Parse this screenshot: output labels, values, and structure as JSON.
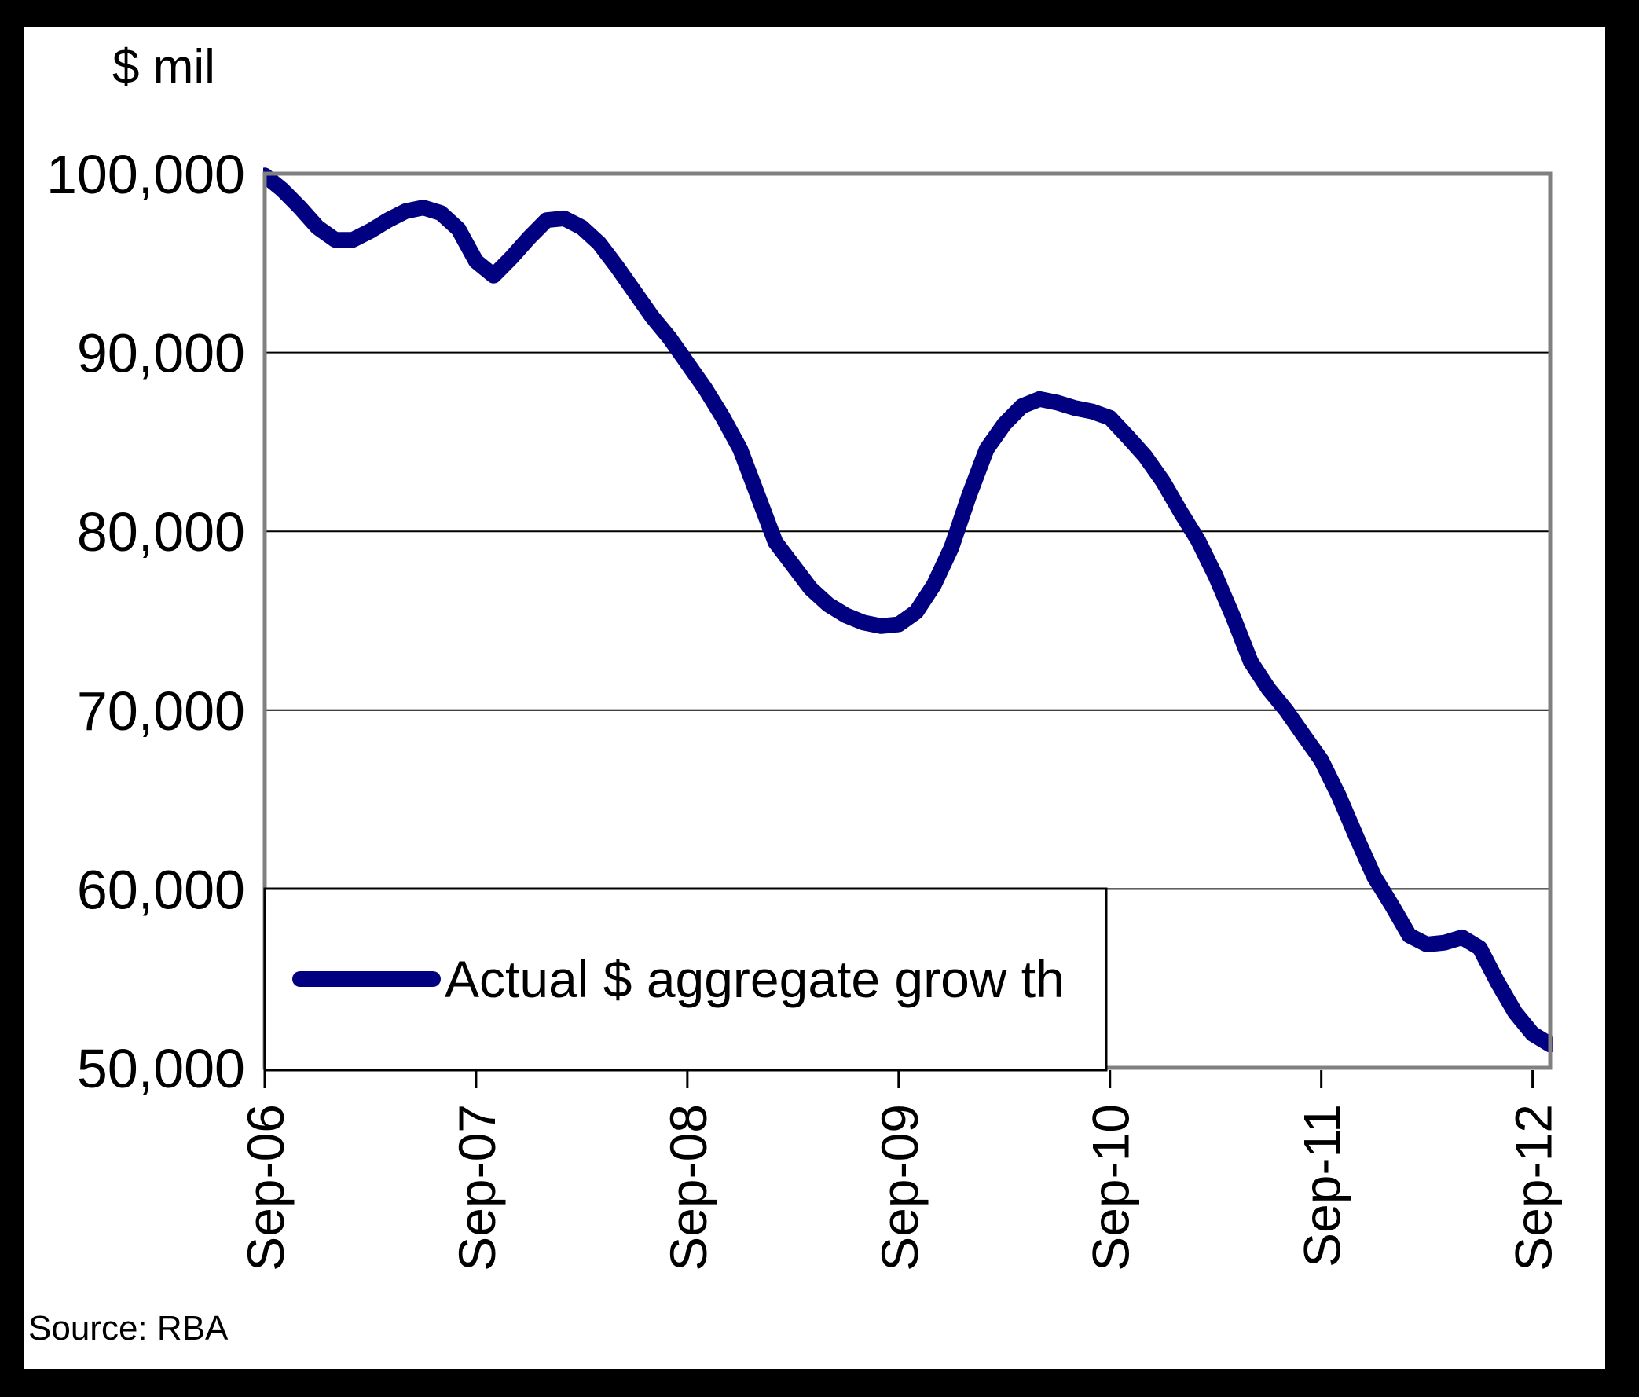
{
  "source": {
    "text": "Source: RBA"
  },
  "legend": {
    "label": "Actual $ aggregate grow th"
  },
  "colors": {
    "line": "#000080",
    "plot_border": "#808080",
    "gridline": "#000000",
    "tick": "#000000",
    "frame": "#000000",
    "background": "#ffffff",
    "text": "#000000",
    "legend_border": "#000000",
    "legend_fill": "#ffffff"
  },
  "chart_data": {
    "type": "line",
    "title": "",
    "xlabel": "",
    "ylabel": "$ mil",
    "ylim": [
      50000,
      100000
    ],
    "y_tick_step": 10000,
    "y_ticks": [
      {
        "value": 100000,
        "label": "100,000"
      },
      {
        "value": 90000,
        "label": "90,000"
      },
      {
        "value": 80000,
        "label": "80,000"
      },
      {
        "value": 70000,
        "label": "70,000"
      },
      {
        "value": 60000,
        "label": "60,000"
      },
      {
        "value": 50000,
        "label": "50,000"
      }
    ],
    "x_tick_labels": [
      "Sep-06",
      "Sep-07",
      "Sep-08",
      "Sep-09",
      "Sep-10",
      "Sep-11",
      "Sep-12"
    ],
    "x_tick_indices": [
      0,
      12,
      24,
      36,
      48,
      60,
      72
    ],
    "x_start": "Sep-06",
    "x_end": "Oct-12",
    "x_frequency": "monthly",
    "gridlines": "horizontal",
    "legend_position": "inside-bottom-left",
    "series": [
      {
        "name": "Actual $ aggregate grow th",
        "color": "#000080",
        "values": [
          99900,
          99100,
          98100,
          97000,
          96300,
          96300,
          96800,
          97400,
          97900,
          98100,
          97800,
          96900,
          95100,
          94300,
          95300,
          96400,
          97400,
          97500,
          97000,
          96100,
          94800,
          93400,
          92000,
          90800,
          89400,
          88000,
          86400,
          84600,
          82000,
          79400,
          78100,
          76800,
          75900,
          75300,
          74900,
          74700,
          74800,
          75500,
          77000,
          79100,
          82000,
          84600,
          86000,
          87000,
          87400,
          87200,
          86900,
          86700,
          86350,
          85300,
          84200,
          82800,
          81100,
          79500,
          77500,
          75200,
          72700,
          71200,
          70000,
          68600,
          67200,
          65200,
          62900,
          60700,
          59100,
          57400,
          56900,
          57000,
          57300,
          56700,
          54800,
          53100,
          51900,
          51300
        ]
      }
    ]
  }
}
